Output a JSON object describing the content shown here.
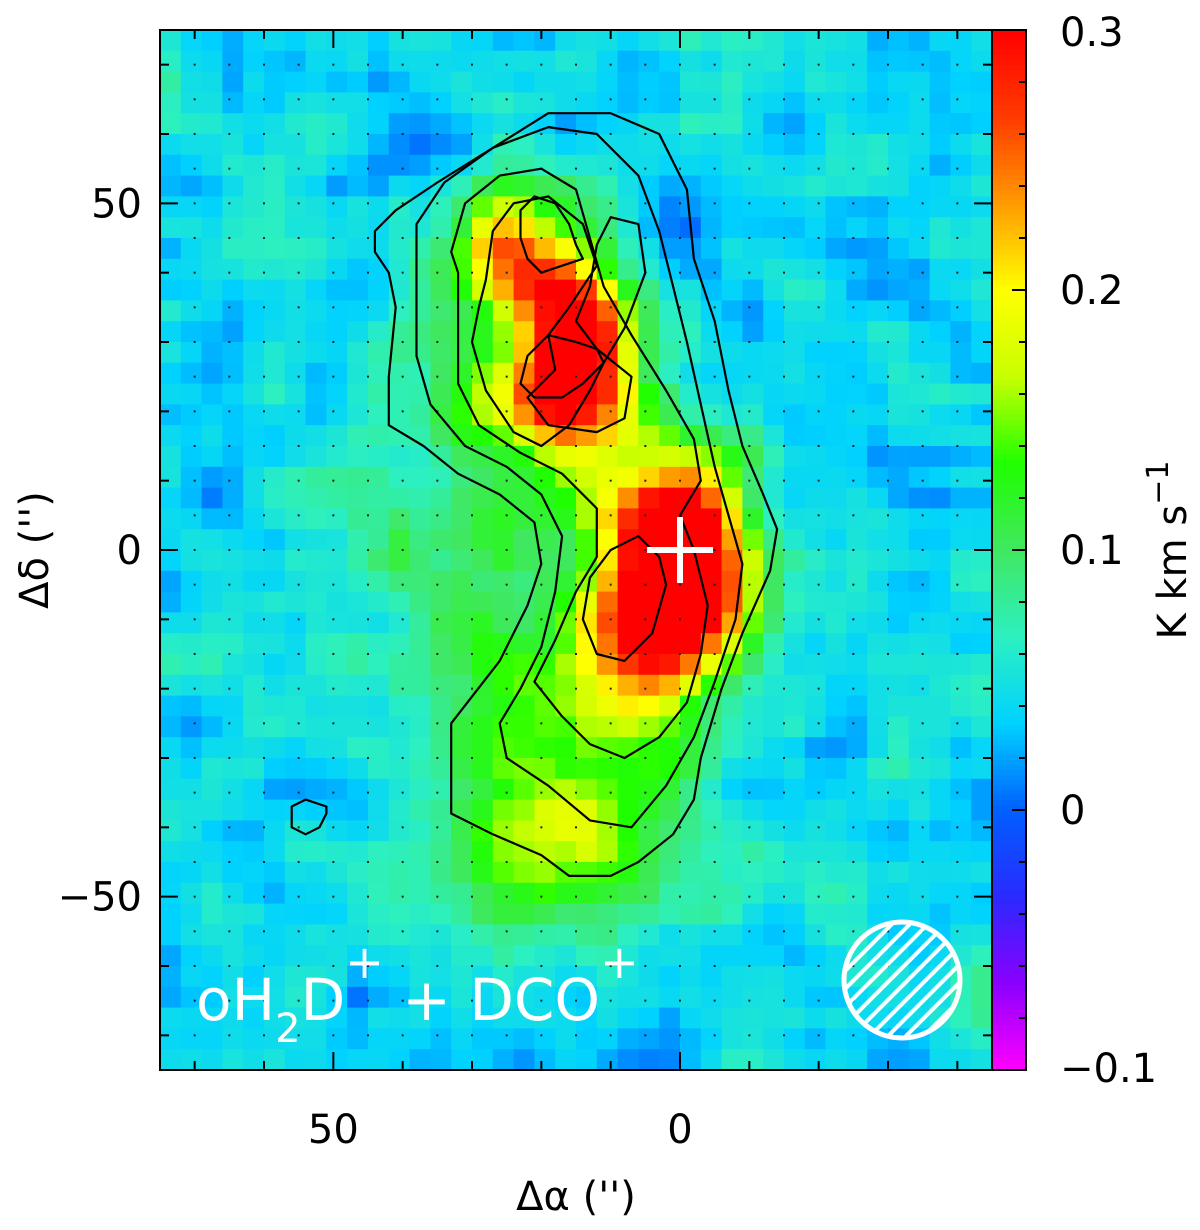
{
  "chart_data": {
    "type": "heatmap",
    "title": "",
    "xlabel": "Δα ('')",
    "ylabel": "Δδ ('')",
    "xlim": [
      75,
      -45
    ],
    "ylim": [
      -75,
      75
    ],
    "x_ticks": [
      50,
      0
    ],
    "y_ticks": [
      50,
      0,
      -50
    ],
    "x_tick_labels": [
      "50",
      "0"
    ],
    "y_tick_labels": [
      "50",
      "0",
      "−50"
    ],
    "grid": "dotted",
    "colorbar": {
      "label": "K km s",
      "label_exponent": "−1",
      "range": [
        -0.1,
        0.3
      ],
      "ticks": [
        0.3,
        0.2,
        0.1,
        0,
        -0.1
      ],
      "tick_labels": [
        "0.3",
        "0.2",
        "0.1",
        "0",
        "−0.1"
      ],
      "colormap": [
        "#ff00ff",
        "#8a00ff",
        "#2a2aff",
        "#0060ff",
        "#00d2ff",
        "#2cf0c0",
        "#40e860",
        "#20ff00",
        "#c8ff00",
        "#ffff00",
        "#ff9a00",
        "#ff3a00",
        "#ff0000"
      ]
    },
    "background_value": 0.04,
    "components": [
      {
        "x": 24,
        "y": 43,
        "peak": 0.2,
        "sx": 6,
        "sy": 6
      },
      {
        "x": 15,
        "y": 32,
        "peak": 0.26,
        "sx": 5,
        "sy": 7
      },
      {
        "x": 17,
        "y": 22,
        "peak": 0.16,
        "sx": 7,
        "sy": 6
      },
      {
        "x": 8,
        "y": 12,
        "peak": 0.1,
        "sx": 10,
        "sy": 10
      },
      {
        "x": 0,
        "y": 3,
        "peak": 0.25,
        "sx": 6,
        "sy": 6
      },
      {
        "x": -2,
        "y": -8,
        "peak": 0.25,
        "sx": 6,
        "sy": 7
      },
      {
        "x": 6,
        "y": -12,
        "peak": 0.15,
        "sx": 6,
        "sy": 7
      },
      {
        "x": 14,
        "y": -28,
        "peak": 0.11,
        "sx": 12,
        "sy": 12
      },
      {
        "x": 20,
        "y": -45,
        "peak": 0.08,
        "sx": 12,
        "sy": 8
      },
      {
        "x": 32,
        "y": 15,
        "peak": 0.05,
        "sx": 10,
        "sy": 15
      },
      {
        "x": 32,
        "y": -10,
        "peak": 0.04,
        "sx": 15,
        "sy": 12
      }
    ],
    "contours": [
      {
        "level": 1,
        "points": [
          [
            44,
            46
          ],
          [
            41,
            49
          ],
          [
            35,
            53
          ],
          [
            27,
            58
          ],
          [
            19,
            63
          ],
          [
            10,
            63
          ],
          [
            3,
            60
          ],
          [
            -1,
            52
          ],
          [
            -2,
            42
          ],
          [
            -5,
            33
          ],
          [
            -7,
            23
          ],
          [
            -9,
            15
          ],
          [
            -12,
            8
          ],
          [
            -14,
            3
          ],
          [
            -13,
            -3
          ],
          [
            -9,
            -12
          ],
          [
            -6,
            -20
          ],
          [
            -3,
            -30
          ],
          [
            -2,
            -36
          ],
          [
            1,
            -41
          ],
          [
            6,
            -45
          ],
          [
            10,
            -47
          ],
          [
            16,
            -47
          ],
          [
            20,
            -44
          ],
          [
            27,
            -41
          ],
          [
            33,
            -38
          ],
          [
            33,
            -25
          ],
          [
            26,
            -16
          ],
          [
            22,
            -8
          ],
          [
            20,
            -2
          ],
          [
            21,
            4
          ],
          [
            26,
            8
          ],
          [
            32,
            11
          ],
          [
            37,
            15
          ],
          [
            42,
            18
          ],
          [
            42,
            25
          ],
          [
            41,
            35
          ],
          [
            42,
            40
          ],
          [
            44,
            43
          ]
        ]
      },
      {
        "level": 2,
        "points": [
          [
            38,
            47
          ],
          [
            34,
            53
          ],
          [
            27,
            58
          ],
          [
            19,
            61
          ],
          [
            12,
            60
          ],
          [
            6,
            54
          ],
          [
            3,
            46
          ],
          [
            1,
            38
          ],
          [
            -1,
            30
          ],
          [
            -3,
            21
          ],
          [
            -5,
            12
          ],
          [
            -7,
            5
          ],
          [
            -9,
            -2
          ],
          [
            -8,
            -10
          ],
          [
            -5,
            -19
          ],
          [
            -2,
            -27
          ],
          [
            2,
            -34
          ],
          [
            7,
            -40
          ],
          [
            13,
            -39
          ],
          [
            19,
            -34
          ],
          [
            25,
            -30
          ],
          [
            26,
            -25
          ],
          [
            23,
            -20
          ],
          [
            20,
            -14
          ],
          [
            18,
            -6
          ],
          [
            17,
            2
          ],
          [
            20,
            8
          ],
          [
            25,
            12
          ],
          [
            31,
            15
          ],
          [
            36,
            21
          ],
          [
            38,
            28
          ],
          [
            38,
            35
          ],
          [
            38,
            43
          ]
        ]
      },
      {
        "level": 3,
        "points": [
          [
            33,
            43
          ],
          [
            31,
            50
          ],
          [
            26,
            54
          ],
          [
            20,
            55
          ],
          [
            15,
            52
          ],
          [
            13,
            45
          ],
          [
            11,
            38
          ],
          [
            7,
            31
          ],
          [
            2,
            23
          ],
          [
            -2,
            16
          ],
          [
            -3,
            10
          ],
          [
            0,
            5
          ],
          [
            -2,
            0
          ],
          [
            -4,
            -8
          ],
          [
            -3,
            -15
          ],
          [
            -1,
            -22
          ],
          [
            3,
            -27
          ],
          [
            8,
            -30
          ],
          [
            13,
            -28
          ],
          [
            17,
            -24
          ],
          [
            21,
            -19
          ],
          [
            18,
            -13
          ],
          [
            15,
            -6
          ],
          [
            12,
            -1
          ],
          [
            12,
            6
          ],
          [
            17,
            11
          ],
          [
            23,
            14
          ],
          [
            29,
            18
          ],
          [
            32,
            24
          ],
          [
            32,
            33
          ],
          [
            32,
            40
          ]
        ]
      },
      {
        "level": 4,
        "points": [
          [
            28,
            39
          ],
          [
            27,
            46
          ],
          [
            24,
            50
          ],
          [
            19,
            51
          ],
          [
            14,
            47
          ],
          [
            12,
            41
          ],
          [
            16,
            35
          ],
          [
            19,
            31
          ],
          [
            18,
            26
          ],
          [
            22,
            22
          ],
          [
            19,
            18
          ],
          [
            12,
            17
          ],
          [
            8,
            19
          ],
          [
            7,
            25
          ],
          [
            12,
            29
          ],
          [
            15,
            33
          ],
          [
            13,
            38
          ],
          [
            12,
            44
          ],
          [
            10,
            48
          ],
          [
            6,
            47
          ],
          [
            5,
            40
          ],
          [
            8,
            32
          ],
          [
            11,
            27
          ],
          [
            13,
            23
          ],
          [
            16,
            18
          ],
          [
            20,
            15
          ],
          [
            24,
            17
          ],
          [
            28,
            23
          ],
          [
            30,
            30
          ],
          [
            29,
            35
          ]
        ]
      },
      {
        "level": 5,
        "points": [
          [
            14,
            42
          ],
          [
            17,
            41
          ],
          [
            20,
            40
          ],
          [
            22,
            42
          ],
          [
            23,
            45
          ],
          [
            23,
            49
          ],
          [
            21,
            51
          ],
          [
            18,
            50
          ],
          [
            16,
            47
          ],
          [
            15,
            44
          ]
        ]
      },
      {
        "level": 5,
        "points": [
          [
            11,
            27
          ],
          [
            14,
            24
          ],
          [
            17,
            22
          ],
          [
            21,
            22
          ],
          [
            23,
            24
          ],
          [
            22,
            28
          ],
          [
            19,
            31
          ],
          [
            15,
            30
          ],
          [
            12,
            29
          ]
        ]
      },
      {
        "level": 5,
        "points": [
          [
            2,
            -5
          ],
          [
            4,
            -12
          ],
          [
            8,
            -16
          ],
          [
            12,
            -15
          ],
          [
            14,
            -10
          ],
          [
            13,
            -4
          ],
          [
            10,
            0
          ],
          [
            6,
            2
          ],
          [
            3,
            -1
          ]
        ]
      },
      {
        "level": 1,
        "points": [
          [
            51,
            -37
          ],
          [
            54,
            -36
          ],
          [
            56,
            -37
          ],
          [
            56,
            -40
          ],
          [
            54,
            -41
          ],
          [
            52,
            -40
          ],
          [
            51,
            -38
          ]
        ]
      }
    ],
    "annotations": [
      {
        "type": "cross",
        "x": 0,
        "y": 0,
        "color": "#ffffff"
      }
    ],
    "legend": {
      "text_lines": [
        "oH",
        "2",
        "D",
        "+",
        " + DCO",
        "+"
      ],
      "placement": "bottom-left"
    },
    "beam": {
      "placement": "bottom-right",
      "color": "#ffffff",
      "hatch": "diagonal"
    }
  }
}
